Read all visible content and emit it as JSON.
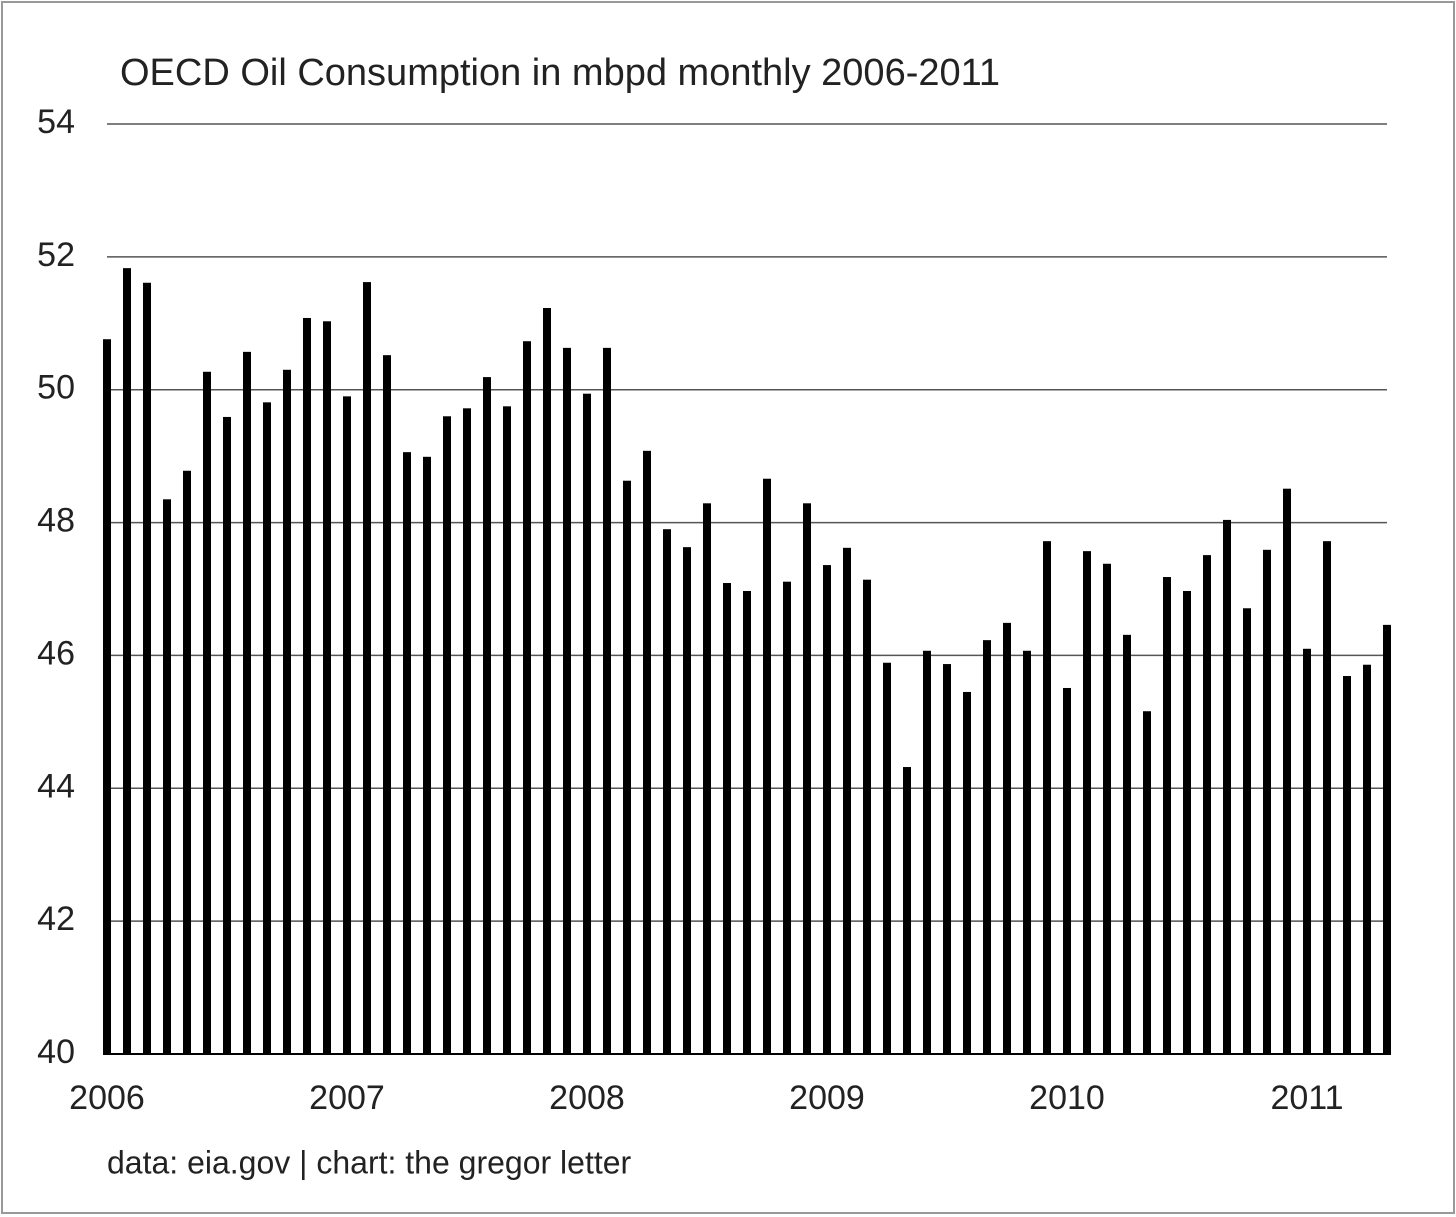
{
  "chart_data": {
    "type": "bar",
    "title": "OECD Oil Consumption in mbpd monthly 2006-2011",
    "source": "data: eia.gov | chart: the gregor letter",
    "categories": [
      "2006",
      null,
      null,
      null,
      null,
      null,
      null,
      null,
      null,
      null,
      null,
      null,
      "2007",
      null,
      null,
      null,
      null,
      null,
      null,
      null,
      null,
      null,
      null,
      null,
      "2008",
      null,
      null,
      null,
      null,
      null,
      null,
      null,
      null,
      null,
      null,
      null,
      "2009",
      null,
      null,
      null,
      null,
      null,
      null,
      null,
      null,
      null,
      null,
      null,
      "2010",
      null,
      null,
      null,
      null,
      null,
      null,
      null,
      null,
      null,
      null,
      null,
      "2011",
      null,
      null,
      null,
      null
    ],
    "values": [
      50.76,
      51.83,
      51.61,
      48.35,
      48.78,
      50.27,
      49.59,
      50.57,
      49.81,
      50.3,
      51.08,
      51.03,
      49.9,
      51.62,
      50.52,
      49.06,
      48.99,
      49.6,
      49.72,
      50.19,
      49.75,
      50.73,
      51.23,
      50.63,
      49.94,
      50.63,
      48.63,
      49.08,
      47.9,
      47.63,
      48.29,
      47.09,
      46.97,
      48.66,
      47.11,
      48.29,
      47.36,
      47.62,
      47.14,
      45.89,
      44.32,
      46.07,
      45.87,
      45.45,
      46.23,
      46.49,
      46.07,
      47.72,
      45.51,
      47.57,
      47.38,
      46.31,
      45.16,
      47.18,
      46.97,
      47.51,
      48.04,
      46.71,
      47.59,
      48.51,
      46.1,
      47.72,
      45.69,
      45.86,
      46.46
    ],
    "color": "#000000",
    "ylim": [
      40,
      54
    ],
    "yticks": [
      40,
      42,
      44,
      46,
      48,
      50,
      52,
      54
    ],
    "grid": true
  }
}
